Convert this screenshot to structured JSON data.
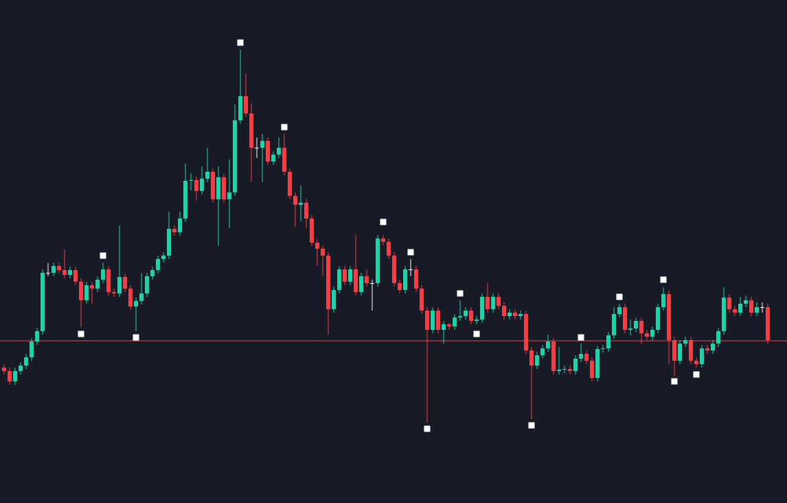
{
  "chart_data": {
    "type": "candlestick",
    "ylim": [
      0,
      732
    ],
    "up_color": "#22d1a8",
    "down_color": "#ef3f47",
    "background": "#181b25",
    "hline": 236,
    "hline_color": "#e84a4a",
    "series": [
      {
        "open": [
          197,
          192,
          177,
          192,
          200,
          212,
          235,
          250,
          335,
          335,
          345,
          339,
          332,
          339,
          322,
          295,
          317,
          312,
          325,
          340,
          307,
          305,
          329,
          312,
          286,
          294,
          305,
          330,
          339,
          355,
          360,
          399,
          394,
          414,
          469,
          470,
          454,
          472,
          482,
          442,
          474,
          442,
          452,
          557,
          592,
          567,
          517,
          517,
          527,
          497,
          507,
          517,
          482,
          447,
          434,
          437,
          414,
          379,
          370,
          360,
          282,
          310,
          340,
          322,
          340,
          307,
          330,
          320,
          320,
          385,
          380,
          360,
          320,
          310,
          340,
          340,
          312,
          280,
          252,
          280,
          252,
          260,
          257,
          270,
          272,
          280,
          265,
          267,
          300,
          282,
          300,
          287,
          272,
          277,
          272,
          275,
          222,
          200,
          215,
          225,
          235,
          192,
          194,
          195,
          192,
          210,
          217,
          207,
          182,
          224,
          225,
          244,
          275,
          285,
          252,
          254,
          265,
          247,
          242,
          252,
          285,
          304,
          237,
          207,
          232,
          237,
          207,
          202,
          225,
          222,
          232,
          250,
          299,
          282,
          277,
          290,
          295,
          277,
          285,
          285
        ],
        "high": [
          202,
          197,
          197,
          205,
          217,
          240,
          255,
          340,
          349,
          350,
          350,
          369,
          344,
          344,
          327,
          322,
          322,
          330,
          350,
          345,
          312,
          404,
          334,
          317,
          299,
          335,
          335,
          344,
          360,
          365,
          424,
          404,
          424,
          494,
          480,
          475,
          490,
          517,
          487,
          490,
          479,
          500,
          580,
          660,
          625,
          582,
          532,
          537,
          532,
          512,
          532,
          537,
          487,
          452,
          462,
          442,
          419,
          384,
          375,
          365,
          315,
          345,
          345,
          345,
          390,
          335,
          340,
          325,
          390,
          390,
          385,
          365,
          325,
          345,
          355,
          345,
          317,
          285,
          285,
          285,
          265,
          262,
          275,
          295,
          285,
          285,
          272,
          305,
          320,
          305,
          305,
          292,
          282,
          282,
          280,
          280,
          227,
          220,
          230,
          245,
          240,
          227,
          200,
          200,
          215,
          232,
          222,
          212,
          229,
          230,
          249,
          285,
          290,
          290,
          267,
          270,
          270,
          252,
          257,
          290,
          314,
          309,
          242,
          237,
          242,
          242,
          212,
          230,
          230,
          237,
          255,
          314,
          304,
          287,
          300,
          302,
          300,
          292,
          292,
          290
        ],
        "low": [
          187,
          172,
          172,
          187,
          195,
          207,
          230,
          245,
          330,
          330,
          334,
          327,
          327,
          317,
          256,
          290,
          290,
          307,
          320,
          302,
          300,
          300,
          307,
          281,
          250,
          289,
          300,
          325,
          334,
          350,
          355,
          389,
          389,
          409,
          455,
          440,
          449,
          467,
          437,
          374,
          437,
          400,
          447,
          552,
          562,
          467,
          502,
          467,
          492,
          492,
          502,
          477,
          442,
          402,
          410,
          400,
          374,
          345,
          330,
          245,
          277,
          305,
          317,
          317,
          302,
          302,
          315,
          280,
          315,
          375,
          355,
          315,
          305,
          305,
          330,
          307,
          275,
          117,
          247,
          247,
          232,
          252,
          252,
          265,
          267,
          260,
          260,
          262,
          277,
          277,
          282,
          267,
          267,
          267,
          267,
          217,
          122,
          195,
          210,
          220,
          187,
          187,
          189,
          187,
          187,
          205,
          202,
          177,
          177,
          219,
          220,
          239,
          270,
          247,
          244,
          249,
          232,
          237,
          237,
          247,
          280,
          202,
          185,
          202,
          227,
          202,
          197,
          197,
          217,
          217,
          227,
          245,
          277,
          272,
          272,
          285,
          272,
          272,
          277,
          232
        ],
        "close": [
          192,
          177,
          192,
          200,
          212,
          235,
          250,
          335,
          335,
          345,
          339,
          332,
          339,
          322,
          295,
          317,
          312,
          325,
          340,
          307,
          305,
          329,
          312,
          286,
          294,
          305,
          330,
          339,
          355,
          360,
          399,
          394,
          414,
          469,
          470,
          454,
          472,
          482,
          442,
          474,
          442,
          452,
          557,
          592,
          567,
          517,
          517,
          527,
          497,
          507,
          517,
          482,
          447,
          434,
          437,
          414,
          379,
          370,
          360,
          282,
          310,
          340,
          322,
          340,
          307,
          330,
          320,
          320,
          385,
          380,
          360,
          320,
          310,
          340,
          340,
          312,
          280,
          252,
          280,
          252,
          260,
          257,
          270,
          272,
          280,
          265,
          267,
          300,
          282,
          300,
          287,
          272,
          277,
          272,
          275,
          222,
          200,
          215,
          225,
          235,
          192,
          194,
          195,
          192,
          210,
          217,
          207,
          182,
          224,
          225,
          244,
          275,
          285,
          252,
          254,
          265,
          247,
          242,
          252,
          285,
          304,
          237,
          207,
          232,
          237,
          207,
          202,
          225,
          222,
          232,
          250,
          299,
          282,
          277,
          290,
          295,
          277,
          285,
          285,
          237
        ]
      }
    ],
    "markers": {
      "color": "#ffffff",
      "x": [
        43,
        18,
        14,
        24,
        51,
        69,
        74,
        77,
        83,
        86,
        96,
        105,
        112,
        120,
        122,
        126
      ],
      "values": [
        670,
        360,
        246,
        241,
        547,
        409,
        365,
        108,
        305,
        246,
        113,
        241,
        300,
        325,
        177,
        187
      ]
    }
  }
}
